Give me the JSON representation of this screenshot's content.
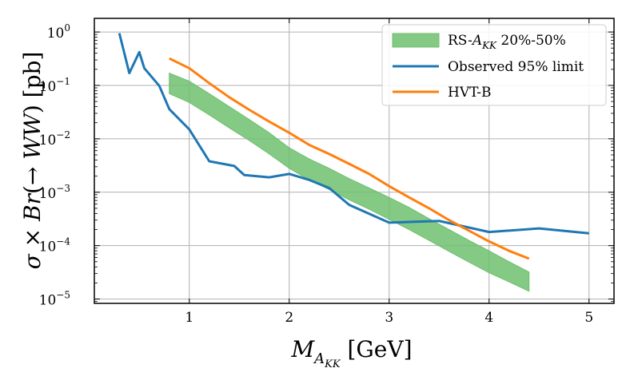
{
  "chart_data": {
    "type": "line",
    "title": "",
    "xlabel": "M_{A_KK} [GeV]",
    "ylabel": "σ × Br(→ WW) [pb]",
    "xlim": [
      0.05,
      5.25
    ],
    "ylim": [
      8.3e-06,
      1.8
    ],
    "yscale": "log",
    "grid": true,
    "x_ticks": [
      1,
      2,
      3,
      4,
      5
    ],
    "y_ticks": [
      {
        "value": 1,
        "exponent": "0"
      },
      {
        "value": 0.1,
        "exponent": "−1"
      },
      {
        "value": 0.01,
        "exponent": "−2"
      },
      {
        "value": 0.001,
        "exponent": "−3"
      },
      {
        "value": 0.0001,
        "exponent": "−4"
      },
      {
        "value": 1e-05,
        "exponent": "−5"
      }
    ],
    "y_tick_base": "10",
    "legend": {
      "location": "top-right",
      "entries": [
        {
          "label_main": "RS-",
          "label_sym": "A",
          "label_sub": "KK",
          "label_rest": " 20%-50%",
          "color": "#6fbf6f",
          "kind": "band"
        },
        {
          "label": "Observed 95% limit",
          "color": "#1f77b4",
          "kind": "line"
        },
        {
          "label": "HVT-B",
          "color": "#ff7f0e",
          "kind": "line"
        }
      ]
    },
    "series": [
      {
        "name": "RS-A_KK 20%-50%",
        "type": "band",
        "color": "#6fbf6f",
        "x": [
          0.8,
          1.0,
          1.2,
          1.4,
          1.6,
          1.8,
          2.0,
          2.2,
          2.4,
          2.6,
          2.8,
          3.0,
          3.2,
          3.4,
          3.6,
          3.8,
          4.0,
          4.2,
          4.4
        ],
        "upper": [
          0.17,
          0.12,
          0.07,
          0.04,
          0.023,
          0.013,
          0.0068,
          0.0042,
          0.0028,
          0.0018,
          0.0012,
          0.0008,
          0.00052,
          0.00032,
          0.0002,
          0.000125,
          8e-05,
          5e-05,
          3.2e-05
        ],
        "lower": [
          0.07,
          0.048,
          0.028,
          0.016,
          0.0093,
          0.0052,
          0.0028,
          0.0017,
          0.00112,
          0.00072,
          0.00048,
          0.00031,
          0.0002,
          0.000125,
          7.8e-05,
          4.9e-05,
          3.1e-05,
          2.1e-05,
          1.4e-05
        ]
      },
      {
        "name": "Observed 95% limit",
        "type": "line",
        "color": "#1f77b4",
        "x": [
          0.3,
          0.4,
          0.5,
          0.55,
          0.7,
          0.8,
          1.0,
          1.2,
          1.45,
          1.55,
          1.8,
          2.0,
          2.2,
          2.4,
          2.6,
          3.0,
          3.5,
          4.0,
          4.5,
          5.0
        ],
        "y": [
          0.95,
          0.17,
          0.42,
          0.21,
          0.098,
          0.036,
          0.015,
          0.0038,
          0.0031,
          0.0021,
          0.0019,
          0.0022,
          0.0017,
          0.0012,
          0.00058,
          0.00027,
          0.00029,
          0.00018,
          0.00021,
          0.00017
        ]
      },
      {
        "name": "HVT-B",
        "type": "line",
        "color": "#ff7f0e",
        "x": [
          0.8,
          1.0,
          1.2,
          1.4,
          1.6,
          1.8,
          2.0,
          2.2,
          2.4,
          2.6,
          2.8,
          3.0,
          3.2,
          3.4,
          3.6,
          3.8,
          4.0,
          4.2,
          4.4
        ],
        "y": [
          0.32,
          0.21,
          0.11,
          0.06,
          0.035,
          0.021,
          0.013,
          0.0077,
          0.0052,
          0.0034,
          0.0022,
          0.0013,
          0.0008,
          0.0005,
          0.0003,
          0.00019,
          0.00012,
          8e-05,
          5.7e-05
        ]
      }
    ]
  }
}
